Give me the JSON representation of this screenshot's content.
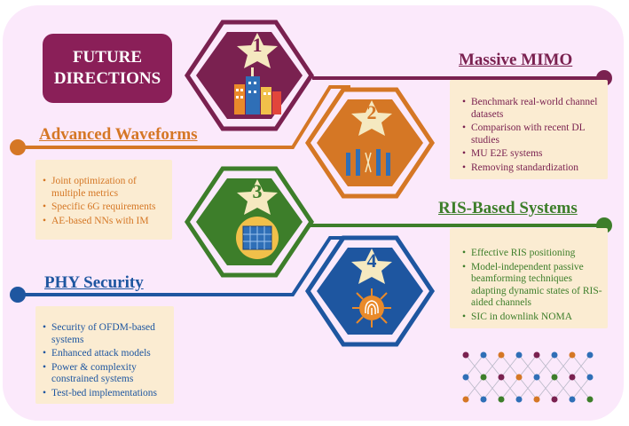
{
  "title": {
    "line1": "FUTURE",
    "line2": "DIRECTIONS"
  },
  "colors": {
    "mimo": "#7a2150",
    "waveforms": "#d57725",
    "ris": "#3d7e2a",
    "phy": "#1e56a0",
    "box_fill": "#fbecd2",
    "background": "#fbe9fb"
  },
  "hexagons": [
    {
      "number": "1",
      "icon": "city-building-icon"
    },
    {
      "number": "2",
      "icon": "antenna-array-icon"
    },
    {
      "number": "3",
      "icon": "ris-panel-icon"
    },
    {
      "number": "4",
      "icon": "fingerprint-network-icon"
    }
  ],
  "sections": {
    "mimo": {
      "heading": "Massive MIMO",
      "items": [
        "Benchmark real-world channel datasets",
        "Comparison with recent DL studies",
        "MU E2E systems",
        "Removing standardization"
      ]
    },
    "waveforms": {
      "heading": "Advanced Waveforms",
      "items": [
        "Joint optimization of multiple metrics",
        "Specific 6G requirements",
        "AE-based NNs with IM"
      ]
    },
    "ris": {
      "heading": "RIS-Based Systems",
      "items": [
        "Effective RIS positioning",
        "Model-independent passive beamforming techniques adapting dynamic states of RIS-aided channels",
        "SIC in downlink NOMA"
      ]
    },
    "phy": {
      "heading": "PHY Security",
      "items": [
        "Security of OFDM-based systems",
        "Enhanced attack models",
        "Power & complexity constrained systems",
        "Test-bed implementations"
      ]
    }
  }
}
